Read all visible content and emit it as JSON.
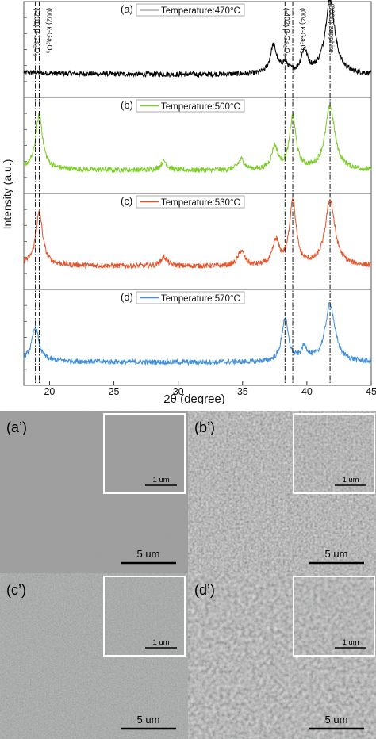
{
  "chart_data": {
    "type": "line",
    "xlabel": "2θ (degree)",
    "ylabel": "Intensity (a.u.)",
    "xlim": [
      18,
      45
    ],
    "x_ticks": [
      "20",
      "25",
      "30",
      "35",
      "40",
      "45"
    ],
    "panels": [
      {
        "tag": "(a)",
        "legend": "Temperature:470°C",
        "color": "#000000",
        "peaks": [
          [
            37.4,
            0.38
          ],
          [
            38.3,
            0.12
          ],
          [
            39.8,
            0.3
          ],
          [
            41.8,
            1.0
          ]
        ]
      },
      {
        "tag": "(b)",
        "legend": "Temperature:500°C",
        "color": "#7ccd2a",
        "peaks": [
          [
            19.2,
            0.72
          ],
          [
            28.9,
            0.12
          ],
          [
            34.9,
            0.14
          ],
          [
            37.5,
            0.3
          ],
          [
            38.9,
            0.7
          ],
          [
            41.8,
            0.85
          ]
        ]
      },
      {
        "tag": "(c)",
        "legend": "Temperature:530°C",
        "color": "#e4542a",
        "peaks": [
          [
            19.2,
            0.7
          ],
          [
            28.9,
            0.12
          ],
          [
            34.9,
            0.2
          ],
          [
            37.6,
            0.32
          ],
          [
            38.9,
            0.88
          ],
          [
            41.8,
            0.88
          ]
        ]
      },
      {
        "tag": "(d)",
        "legend": "Temperature:570°C",
        "color": "#3f8fdb",
        "peaks": [
          [
            18.9,
            0.45
          ],
          [
            38.3,
            0.58
          ],
          [
            39.8,
            0.18
          ],
          [
            41.8,
            0.78
          ]
        ]
      }
    ],
    "reference_lines": [
      {
        "x": 18.9,
        "label": "(-201) β-Ga₂O₃"
      },
      {
        "x": 19.2,
        "label": "(002) κ-Ga₂O₃"
      },
      {
        "x": 38.3,
        "label": "(-402) β-Ga₂O₃"
      },
      {
        "x": 38.9,
        "label": "(004) κ-Ga₂O₃"
      },
      {
        "x": 41.8,
        "label": "(0006) sapphire"
      }
    ]
  },
  "sem": {
    "panels": [
      {
        "tag": "(a’)",
        "scale_main": "5 um",
        "scale_inset": "1 um",
        "texture": "smooth"
      },
      {
        "tag": "(b’)",
        "scale_main": "5 um",
        "scale_inset": "1 um",
        "texture": "grainy"
      },
      {
        "tag": "(c’)",
        "scale_main": "5 um",
        "scale_inset": "1 um",
        "texture": "fine"
      },
      {
        "tag": "(d’)",
        "scale_main": "5 um",
        "scale_inset": "1 um",
        "texture": "coarse"
      }
    ],
    "colors": {
      "gray": "#979897",
      "inset_border": "#ffffff"
    }
  }
}
